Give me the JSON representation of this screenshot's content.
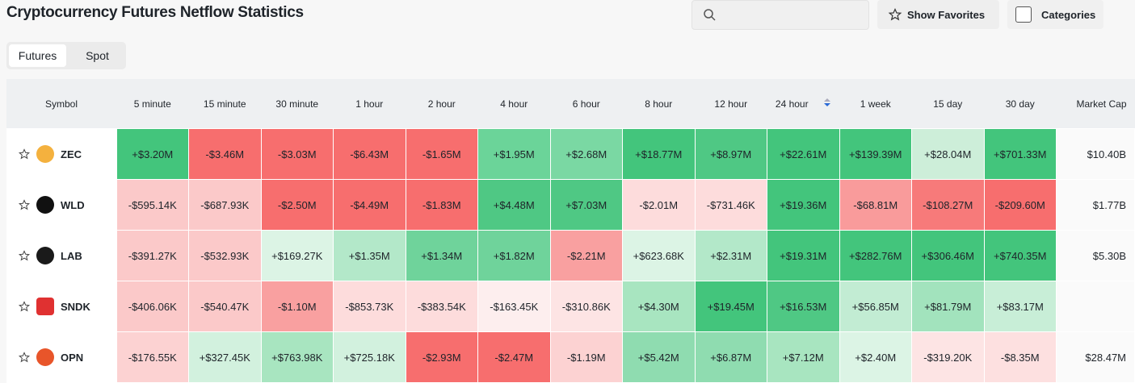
{
  "header": {
    "title": "Cryptocurrency Futures Netflow Statistics",
    "buttons": [
      "Show Favorites",
      "Categories"
    ]
  },
  "tabs": [
    "Futures",
    "Spot"
  ],
  "table": {
    "columns": [
      "Symbol",
      "5 minute",
      "15 minute",
      "30 minute",
      "1 hour",
      "2 hour",
      "4 hour",
      "6 hour",
      "8 hour",
      "12 hour",
      "24 hour",
      "1 week",
      "15 day",
      "30 day",
      "Market Cap"
    ],
    "rows": [
      {
        "symbol": "ZEC",
        "icon_color": "#f4b13e",
        "cells": [
          "+$3.20M",
          "-$3.46M",
          "-$3.03M",
          "-$6.43M",
          "-$1.65M",
          "+$1.95M",
          "+$2.68M",
          "+$18.77M",
          "+$8.97M",
          "+$22.61M",
          "+$139.39M",
          "+$28.04M",
          "+$701.33M"
        ],
        "colors": [
          "#43c57c",
          "#f76e6e",
          "#f76e6e",
          "#f76e6e",
          "#f76e6e",
          "#6bd499",
          "#7ad8a3",
          "#43c57c",
          "#4fc884",
          "#43c57c",
          "#43c57c",
          "#cdeed9",
          "#43c57c"
        ],
        "market_cap": "$10.40B"
      },
      {
        "symbol": "WLD",
        "icon_color": "#111111",
        "cells": [
          "-$595.14K",
          "-$687.93K",
          "-$2.50M",
          "-$4.49M",
          "-$1.83M",
          "+$4.48M",
          "+$7.03M",
          "-$2.01M",
          "-$731.46K",
          "+$19.36M",
          "-$68.81M",
          "-$108.27M",
          "-$209.60M"
        ],
        "colors": [
          "#fbc9c9",
          "#fbc9c9",
          "#f76e6e",
          "#f76e6e",
          "#f76e6e",
          "#4fc884",
          "#4fc884",
          "#fddcdc",
          "#fddcdc",
          "#43c57c",
          "#f99b9b",
          "#f77a7a",
          "#f76e6e"
        ],
        "market_cap": "$1.77B"
      },
      {
        "symbol": "LAB",
        "icon_color": "#1a1a1a",
        "cells": [
          "-$391.27K",
          "-$532.93K",
          "+$169.27K",
          "+$1.35M",
          "+$1.34M",
          "+$1.82M",
          "-$2.21M",
          "+$623.68K",
          "+$2.31M",
          "+$19.31M",
          "+$282.76M",
          "+$306.46M",
          "+$740.35M"
        ],
        "colors": [
          "#fbc9c9",
          "#fbc9c9",
          "#dcf4e5",
          "#b3e8c9",
          "#6fd39b",
          "#6fd39b",
          "#f9a0a0",
          "#dcf4e5",
          "#b3e8c9",
          "#43c57c",
          "#43c57c",
          "#43c57c",
          "#43c57c"
        ],
        "market_cap": "$5.30B"
      },
      {
        "symbol": "SNDK",
        "icon_color": "#e03131",
        "cells": [
          "-$406.06K",
          "-$540.47K",
          "-$1.10M",
          "-$853.73K",
          "-$383.54K",
          "-$163.45K",
          "-$310.86K",
          "+$4.30M",
          "+$19.45M",
          "+$16.53M",
          "+$56.85M",
          "+$81.79M",
          "+$83.17M"
        ],
        "colors": [
          "#fbc9c9",
          "#fbc9c9",
          "#f9a0a0",
          "#fddcdc",
          "#fddcdc",
          "#fdeeee",
          "#fde4e4",
          "#a8e5c0",
          "#43c57c",
          "#4fc884",
          "#c2ecd3",
          "#a2e3bd",
          "#c8eed7"
        ],
        "market_cap": null
      },
      {
        "symbol": "OPN",
        "icon_color": "#e8552a",
        "cells": [
          "-$176.55K",
          "+$327.45K",
          "+$763.98K",
          "+$725.18K",
          "-$2.93M",
          "-$2.47M",
          "-$1.19M",
          "+$5.42M",
          "+$6.87M",
          "+$7.12M",
          "+$2.40M",
          "-$319.20K",
          "-$8.35M"
        ],
        "colors": [
          "#fcd2d2",
          "#d2f1de",
          "#a8e5c0",
          "#d2f1de",
          "#f76e6e",
          "#f76e6e",
          "#fcd2d2",
          "#8fdcb0",
          "#8fdcb0",
          "#a8e5c0",
          "#dcf4e5",
          "#fde4e4",
          "#fde0e0"
        ],
        "market_cap": "$28.47M"
      }
    ]
  }
}
